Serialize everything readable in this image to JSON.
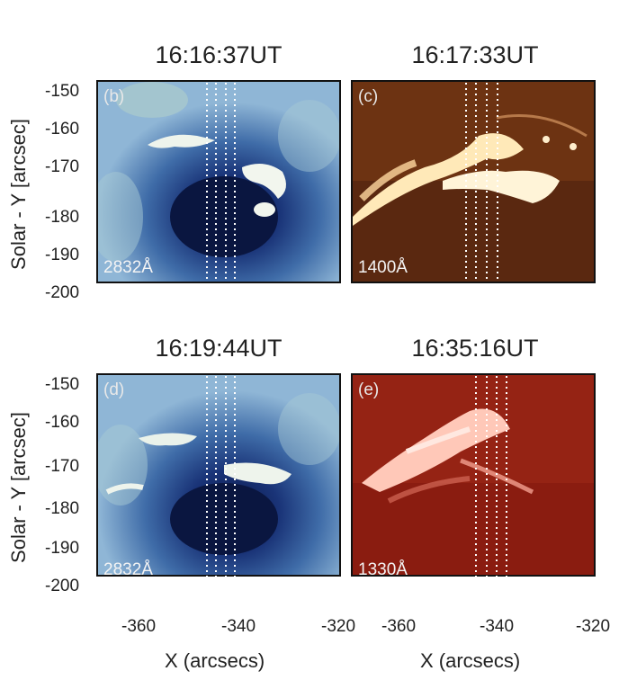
{
  "panels": [
    {
      "id": "b",
      "label": "(b)",
      "time": "16:16:37UT",
      "wavelength": "2832Å",
      "style": "blue"
    },
    {
      "id": "c",
      "label": "(c)",
      "time": "16:17:33UT",
      "wavelength": "1400Å",
      "style": "orange"
    },
    {
      "id": "d",
      "label": "(d)",
      "time": "16:19:44UT",
      "wavelength": "2832Å",
      "style": "blue"
    },
    {
      "id": "e",
      "label": "(e)",
      "time": "16:35:16UT",
      "wavelength": "1330Å",
      "style": "red"
    }
  ],
  "axes": {
    "ylabel": "Solar - Y [arcsec]",
    "xlabel": "X (arcsecs)",
    "yticks": [
      "-150",
      "-160",
      "-170",
      "-180",
      "-190",
      "-200"
    ],
    "xticks": [
      "-360",
      "-340",
      "-320"
    ]
  },
  "colors": {
    "blue_bg": "#7fa8cf",
    "blue_dark": "#0d1f55",
    "orange_bg": "#5e2a10",
    "orange_bright": "#fff1c8",
    "red_bg": "#8a1c10",
    "red_bright": "#ffd4c8"
  }
}
